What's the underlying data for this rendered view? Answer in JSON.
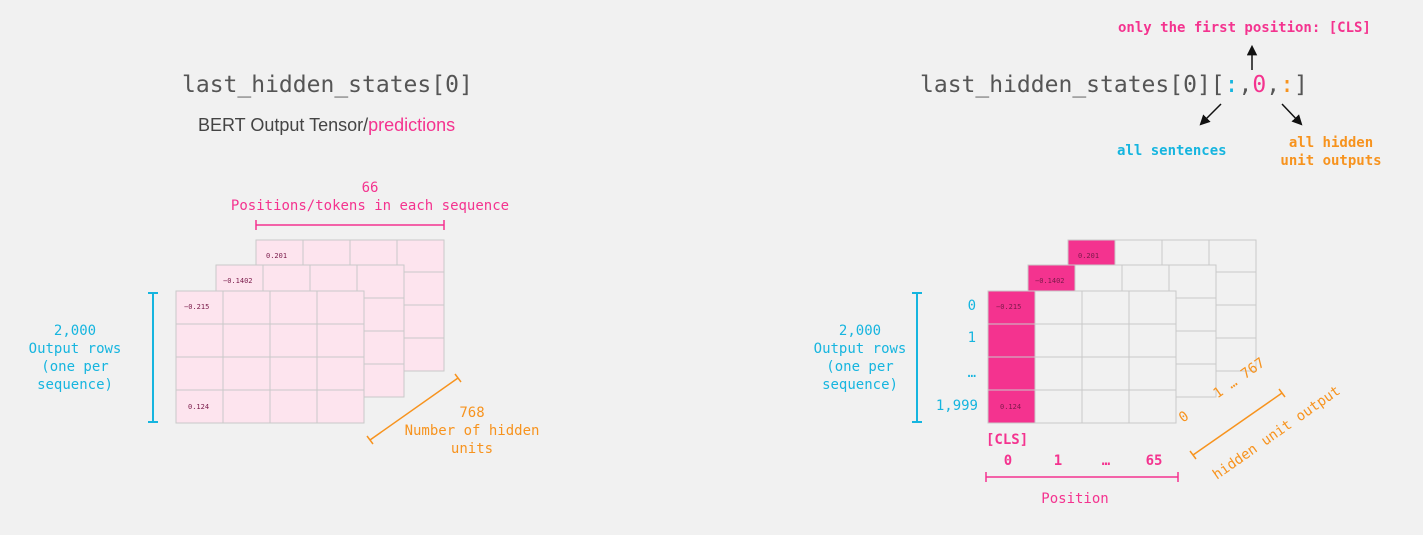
{
  "left": {
    "code_title": "last_hidden_states[0]",
    "subtitle_prefix": "BERT Output Tensor/",
    "subtitle_highlight": "predictions",
    "positions_count": "66",
    "positions_label": "Positions/tokens in each sequence",
    "rows_count": "2,000",
    "rows_label_1": "Output rows",
    "rows_label_2": "(one per",
    "rows_label_3": "sequence)",
    "hidden_count": "768",
    "hidden_label_1": "Number of hidden",
    "hidden_label_2": "units",
    "cells": {
      "front_top": "−0.215",
      "front_bottom": "0.124",
      "middle_top": "−0.1402",
      "back_top": "0.201"
    }
  },
  "right": {
    "code_prefix": "last_hidden_states[0][",
    "code_colon1": ":",
    "comma1": ",",
    "code_zero": "0",
    "comma2": ",",
    "code_colon2": ":",
    "code_suffix": "]",
    "first_position_label": "only the first position: [CLS]",
    "all_sentences_label": "all sentences",
    "hidden_outputs_label_1": "all hidden",
    "hidden_outputs_label_2": "unit outputs",
    "rows_count": "2,000",
    "rows_label_1": "Output rows",
    "rows_label_2": "(one per",
    "rows_label_3": "sequence)",
    "row_indices": [
      "0",
      "1",
      "…",
      "1,999"
    ],
    "cls_label": "[CLS]",
    "col_indices": [
      "0",
      "1",
      "…",
      "65"
    ],
    "position_label": "Position",
    "hidden_indices": "0    1 … 767",
    "hidden_axis_label": "hidden unit output",
    "cells": {
      "front_top": "−0.215",
      "front_bottom": "0.124",
      "middle_top": "−0.1402",
      "back_top": "0.201"
    }
  },
  "colors": {
    "pink": "#f4338f",
    "light_pink": "#fde4ee",
    "blue": "#16b5df",
    "orange": "#f7931e",
    "grey_cell": "#f1f1f1",
    "text_grey": "#555555"
  }
}
